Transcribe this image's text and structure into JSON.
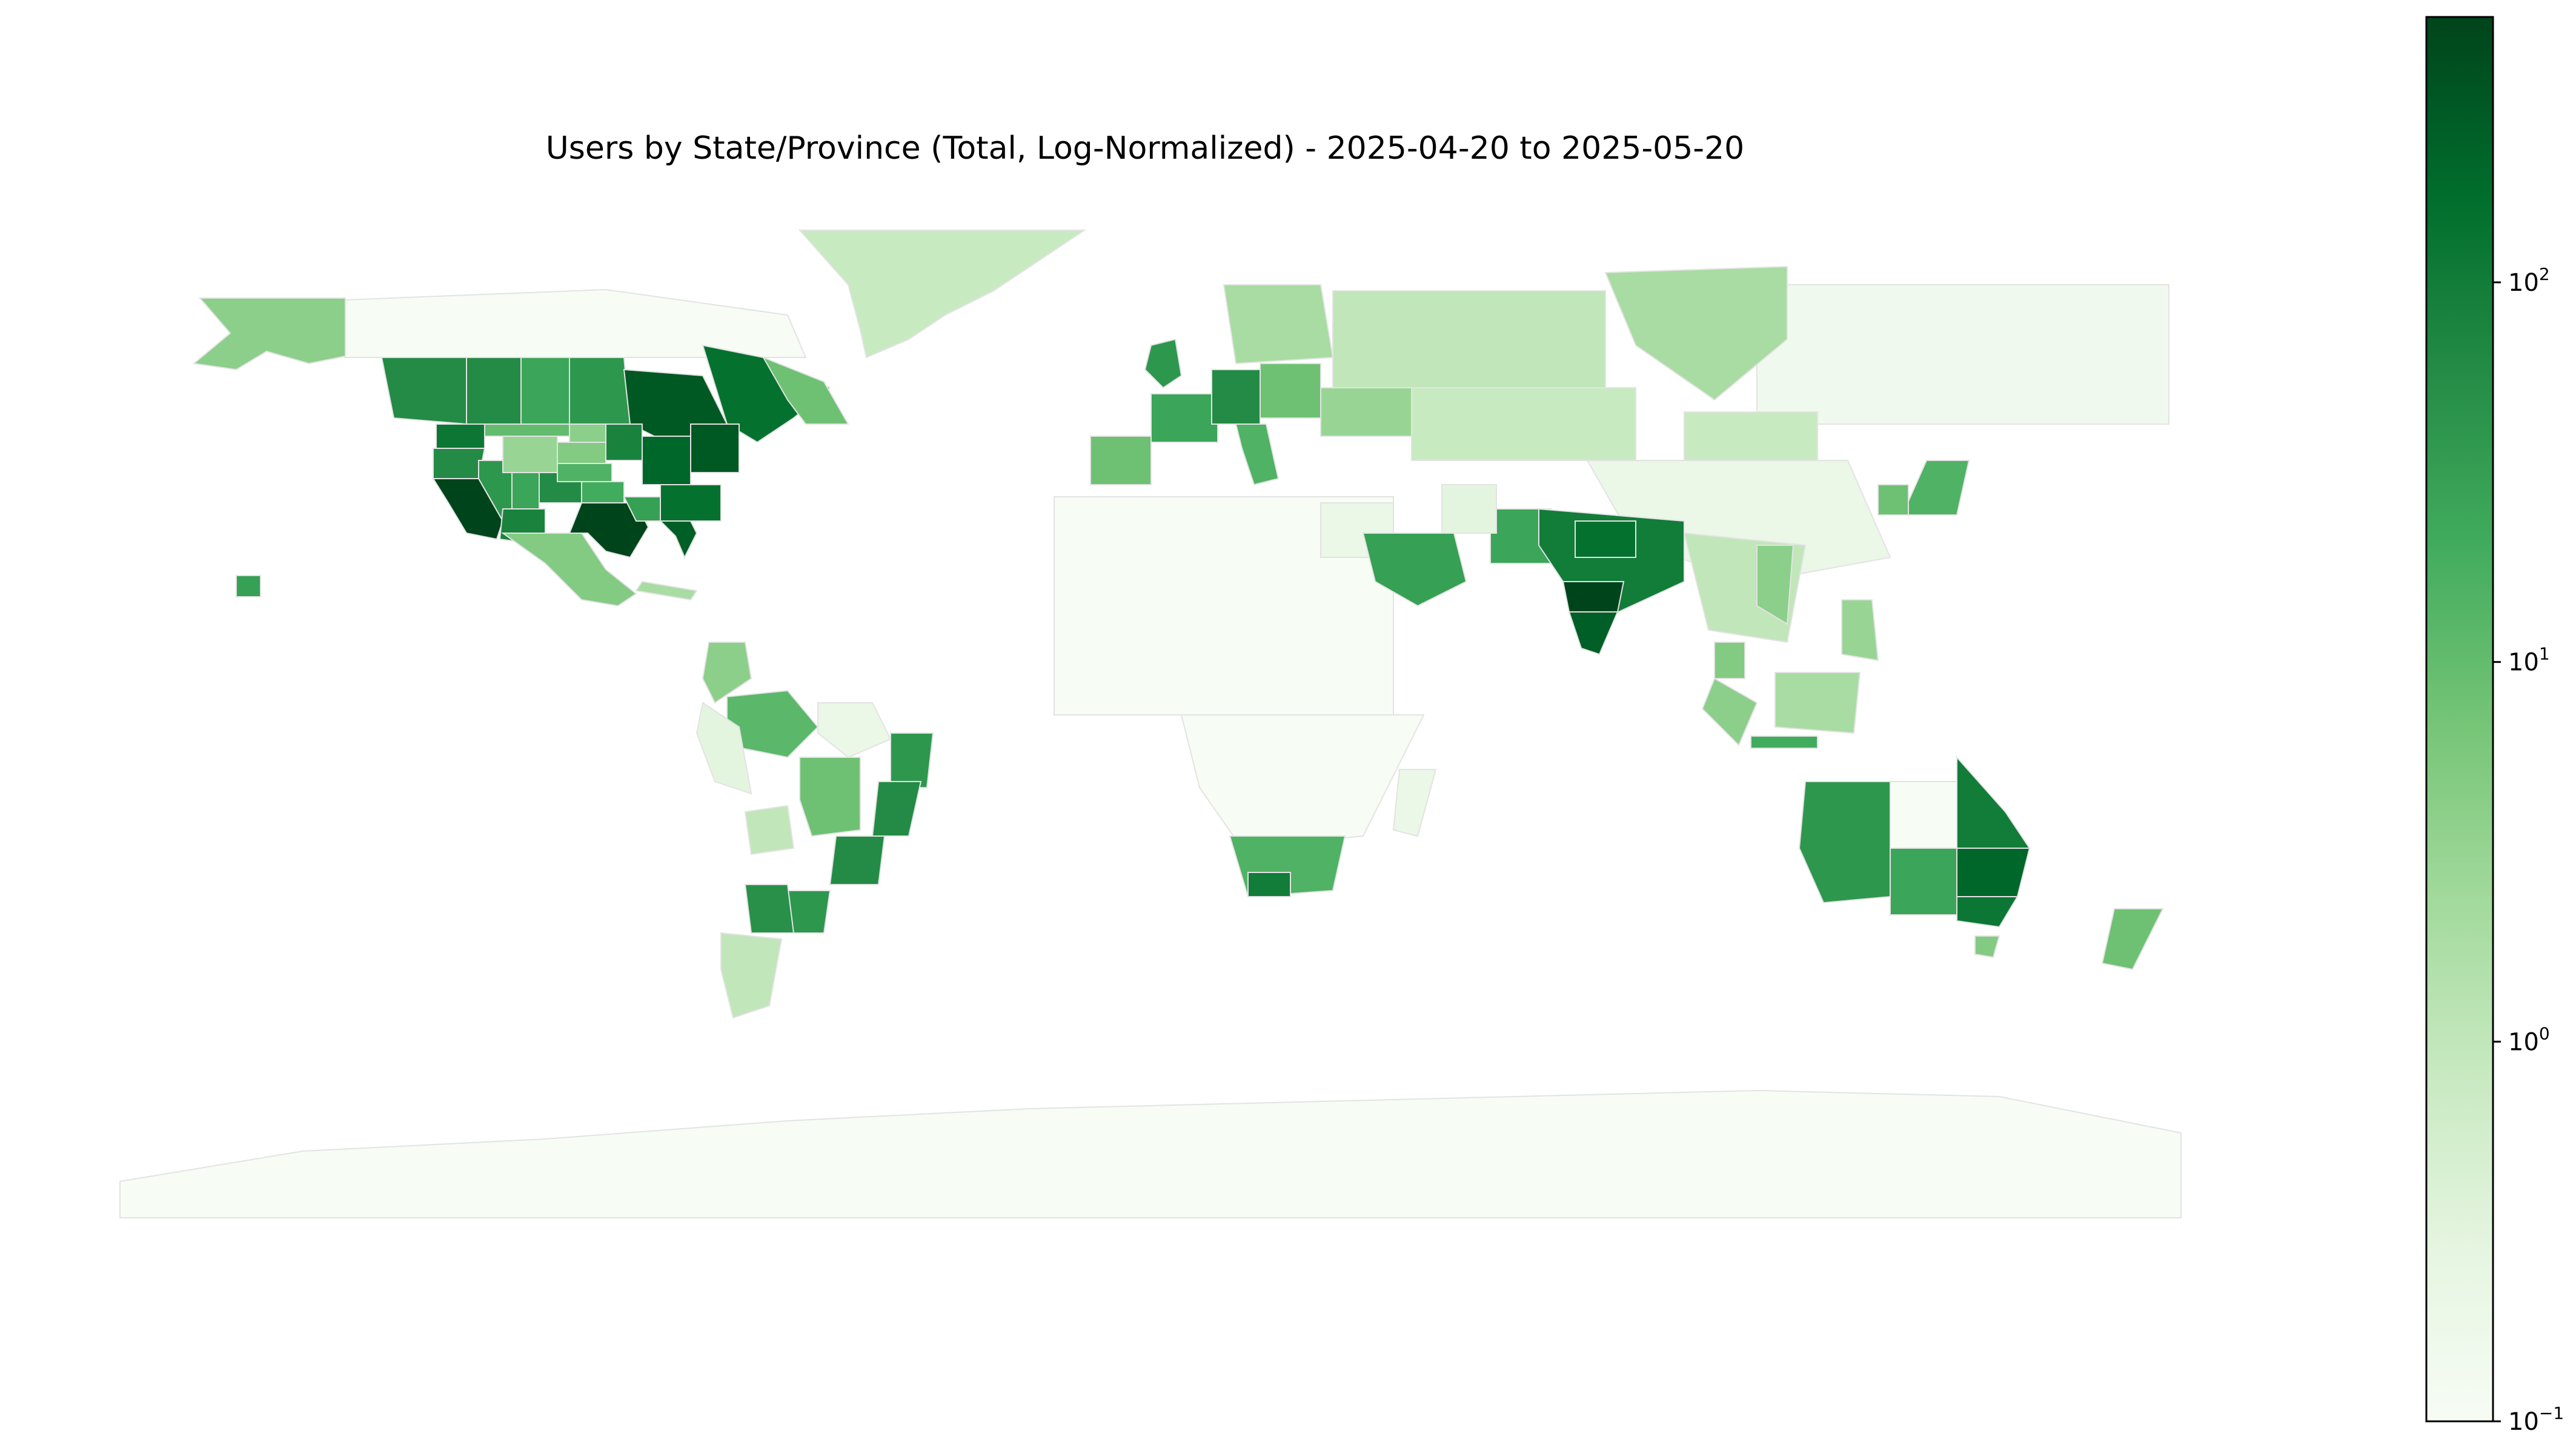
{
  "chart_data": {
    "type": "choropleth",
    "title": "Users by State/Province (Total, Log-Normalized) - 2025-04-20 to 2025-05-20",
    "colorbar": {
      "scale": "log",
      "range": [
        0.1,
        500
      ],
      "colormap": "Greens",
      "ticks": [
        {
          "base": "10",
          "exp": "2",
          "value": 100
        },
        {
          "base": "10",
          "exp": "1",
          "value": 10
        },
        {
          "base": "10",
          "exp": "0",
          "value": 1
        },
        {
          "base": "10",
          "exp": "−1",
          "value": 0.1
        }
      ]
    },
    "regions": [
      {
        "name": "Antarctica",
        "value": 0.1
      },
      {
        "name": "Greenland",
        "value": 0.8
      },
      {
        "name": "Alaska",
        "value": 4
      },
      {
        "name": "Yukon/Northwest Territories/Nunavut",
        "value": 0.1
      },
      {
        "name": "British Columbia",
        "value": 60
      },
      {
        "name": "Alberta",
        "value": 60
      },
      {
        "name": "Saskatchewan",
        "value": 25
      },
      {
        "name": "Manitoba",
        "value": 40
      },
      {
        "name": "Ontario",
        "value": 300
      },
      {
        "name": "Quebec",
        "value": 150
      },
      {
        "name": "Newfoundland and Labrador",
        "value": 8
      },
      {
        "name": "Washington",
        "value": 120
      },
      {
        "name": "Oregon",
        "value": 60
      },
      {
        "name": "California",
        "value": 500
      },
      {
        "name": "Nevada",
        "value": 40
      },
      {
        "name": "Arizona",
        "value": 80
      },
      {
        "name": "Utah",
        "value": 25
      },
      {
        "name": "Colorado",
        "value": 60
      },
      {
        "name": "Wyoming",
        "value": 3
      },
      {
        "name": "Montana",
        "value": 10
      },
      {
        "name": "North Dakota",
        "value": 4
      },
      {
        "name": "South Dakota",
        "value": 5
      },
      {
        "name": "Nebraska",
        "value": 15
      },
      {
        "name": "Kansas",
        "value": 20
      },
      {
        "name": "Texas",
        "value": 500
      },
      {
        "name": "Oklahoma",
        "value": 30
      },
      {
        "name": "Minnesota",
        "value": 80
      },
      {
        "name": "Illinois",
        "value": 200
      },
      {
        "name": "New York",
        "value": 300
      },
      {
        "name": "Georgia",
        "value": 150
      },
      {
        "name": "Florida",
        "value": 250
      },
      {
        "name": "Mexico",
        "value": 5
      },
      {
        "name": "Cuba",
        "value": 2
      },
      {
        "name": "Colombia",
        "value": 4
      },
      {
        "name": "Amazonas",
        "value": 12
      },
      {
        "name": "Pará",
        "value": 0.2
      },
      {
        "name": "Mato Grosso",
        "value": 8
      },
      {
        "name": "Bahia",
        "value": 40
      },
      {
        "name": "Minas Gerais",
        "value": 60
      },
      {
        "name": "São Paulo",
        "value": 60
      },
      {
        "name": "Rio Grande do Sul",
        "value": 40
      },
      {
        "name": "Bolivia",
        "value": 1
      },
      {
        "name": "Peru",
        "value": 0.3
      },
      {
        "name": "Buenos Aires",
        "value": 50
      },
      {
        "name": "Patagonia",
        "value": 1
      },
      {
        "name": "United Kingdom",
        "value": 40
      },
      {
        "name": "France",
        "value": 25
      },
      {
        "name": "Spain",
        "value": 8
      },
      {
        "name": "Germany",
        "value": 60
      },
      {
        "name": "Italy",
        "value": 15
      },
      {
        "name": "Poland",
        "value": 8
      },
      {
        "name": "Scandinavia",
        "value": 2
      },
      {
        "name": "Ukraine",
        "value": 3
      },
      {
        "name": "Western Russia",
        "value": 1
      },
      {
        "name": "Siberia",
        "value": 0.15
      },
      {
        "name": "Krasnoyarsk",
        "value": 2
      },
      {
        "name": "Kazakhstan",
        "value": 0.8
      },
      {
        "name": "Mongolia",
        "value": 0.8
      },
      {
        "name": "China",
        "value": 0.2
      },
      {
        "name": "Northern Africa",
        "value": 0.1
      },
      {
        "name": "Egypt",
        "value": 0.2
      },
      {
        "name": "Central Africa",
        "value": 0.1
      },
      {
        "name": "South Africa",
        "value": 15
      },
      {
        "name": "Western Cape",
        "value": 100
      },
      {
        "name": "Madagascar",
        "value": 0.2
      },
      {
        "name": "Saudi Arabia",
        "value": 30
      },
      {
        "name": "Pakistan",
        "value": 25
      },
      {
        "name": "Iran",
        "value": 0.3
      },
      {
        "name": "India",
        "value": 100
      },
      {
        "name": "Maharashtra",
        "value": 500
      },
      {
        "name": "Karnataka",
        "value": 250
      },
      {
        "name": "Uttar Pradesh",
        "value": 150
      },
      {
        "name": "Southeast Asia",
        "value": 1
      },
      {
        "name": "Vietnam",
        "value": 4
      },
      {
        "name": "Malaysia",
        "value": 5
      },
      {
        "name": "Borneo",
        "value": 2
      },
      {
        "name": "Sumatra",
        "value": 4
      },
      {
        "name": "Java",
        "value": 20
      },
      {
        "name": "Philippines",
        "value": 3
      },
      {
        "name": "Japan",
        "value": 15
      },
      {
        "name": "Korea",
        "value": 8
      },
      {
        "name": "Western Australia",
        "value": 40
      },
      {
        "name": "Northern Territory",
        "value": 0.1
      },
      {
        "name": "South Australia",
        "value": 25
      },
      {
        "name": "Queensland",
        "value": 100
      },
      {
        "name": "New South Wales",
        "value": 200
      },
      {
        "name": "Victoria",
        "value": 120
      },
      {
        "name": "Tasmania",
        "value": 5
      },
      {
        "name": "New Zealand",
        "value": 8
      },
      {
        "name": "Hawaii",
        "value": 30
      }
    ]
  }
}
